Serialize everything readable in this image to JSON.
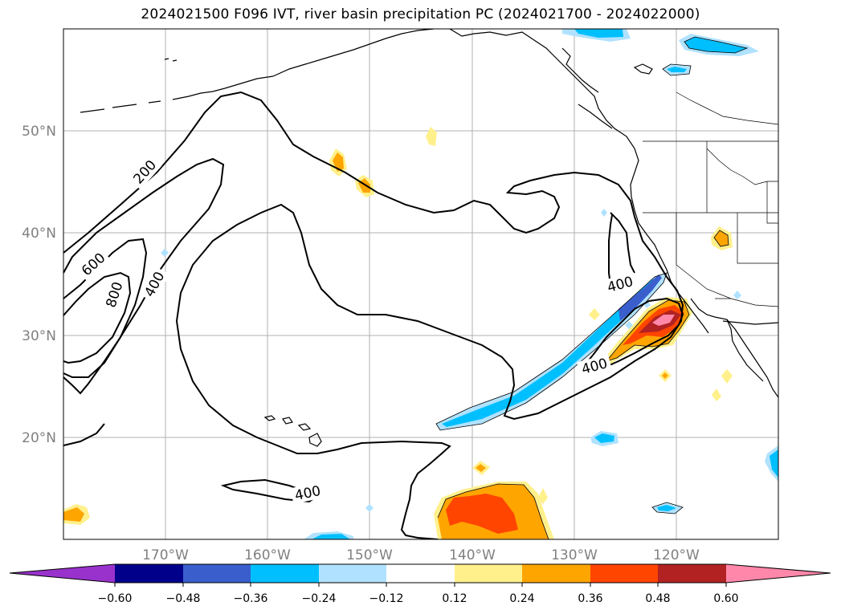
{
  "title": "2024021500 F096 IVT, river basin precipitation PC (2024021700 - 2024022000)",
  "map": {
    "lat_labels": [
      "50°N",
      "40°N",
      "30°N",
      "20°N"
    ],
    "lon_labels": [
      "170°W",
      "160°W",
      "150°W",
      "140°W",
      "130°W",
      "120°W"
    ],
    "contour_labels": [
      "200",
      "600",
      "800",
      "400",
      "400",
      "400",
      "400"
    ],
    "contour_color": "#000000",
    "gridline_color": "#b0b0b0",
    "grid": true
  },
  "colorbar": {
    "ticks": [
      "−0.60",
      "−0.48",
      "−0.36",
      "−0.24",
      "−0.12",
      "0.12",
      "0.24",
      "0.36",
      "0.48",
      "0.60"
    ],
    "colors": [
      "#9932cc",
      "#00008b",
      "#3a5fcd",
      "#00bfff",
      "#b0e2ff",
      "#ffffff",
      "#fff08c",
      "#ffa500",
      "#ff4500",
      "#b22222",
      "#ff88aa"
    ],
    "extend": "both"
  }
}
